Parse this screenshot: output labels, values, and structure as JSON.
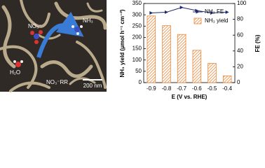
{
  "image": {
    "labels": [
      "NO₃⁻",
      "NH₃",
      "H₂O",
      "NO₃⁻RR"
    ],
    "scale_bar": "200 nm"
  },
  "chart_data": {
    "type": "bar",
    "categories": [
      "-0.9",
      "-0.8",
      "-0.7",
      "-0.6",
      "-0.5",
      "-0.4"
    ],
    "x_label": "E (V vs. RHE)",
    "y_label": "NH₃ yield (μmol h⁻¹ cm⁻²)",
    "y2_label": "FE (%)",
    "ylim": [
      0,
      350
    ],
    "yticks": [
      0,
      50,
      100,
      150,
      200,
      250,
      300,
      350
    ],
    "y2lim": [
      0,
      100
    ],
    "y2ticks": [
      0,
      20,
      40,
      60,
      80,
      100
    ],
    "legend": "upper right",
    "series": [
      {
        "name": "NH₃ FE",
        "axis": "y2",
        "color": "#1f2a6b",
        "values": [
          88,
          89,
          95,
          91,
          88,
          89
        ]
      },
      {
        "name": "NH₃ yield",
        "color": "#e8883a",
        "values": [
          295,
          252,
          213,
          143,
          85,
          30
        ]
      }
    ]
  }
}
